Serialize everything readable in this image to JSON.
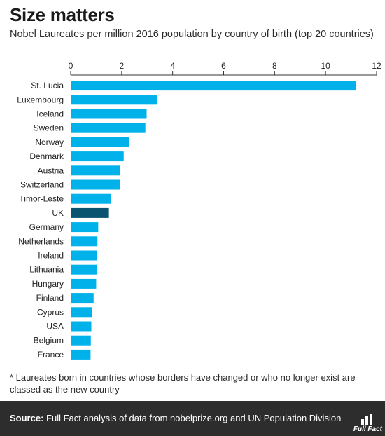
{
  "title": "Size matters",
  "subtitle": "Nobel Laureates per million 2016 population by country of birth (top 20 countries)",
  "footnote": "* Laureates born in countries whose borders have changed or who no longer exist are classed as the new country",
  "source": {
    "label": "Source:",
    "text": "Full Fact analysis of data from nobelprize.org and UN Population Division"
  },
  "logo": {
    "text": "Full Fact",
    "icon": "full-fact-logo-icon"
  },
  "colors": {
    "bar": "#00b1ea",
    "highlight": "#0a5470",
    "axis": "#333333",
    "text": "#222222"
  },
  "chart_data": {
    "type": "bar",
    "orientation": "horizontal",
    "xlim": [
      0,
      12
    ],
    "xticks": [
      0,
      2,
      4,
      6,
      8,
      10,
      12
    ],
    "xaxis_position": "top",
    "grid": false,
    "highlight_category": "UK",
    "categories": [
      "St. Lucia",
      "Luxembourg",
      "Iceland",
      "Sweden",
      "Norway",
      "Denmark",
      "Austria",
      "Switzerland",
      "Timor-Leste",
      "UK",
      "Germany",
      "Netherlands",
      "Ireland",
      "Lithuania",
      "Hungary",
      "Finland",
      "Cyprus",
      "USA",
      "Belgium",
      "France"
    ],
    "values": [
      11.2,
      3.4,
      2.98,
      2.93,
      2.28,
      2.08,
      1.95,
      1.93,
      1.58,
      1.5,
      1.08,
      1.05,
      1.03,
      1.02,
      1.0,
      0.9,
      0.84,
      0.81,
      0.79,
      0.78
    ]
  }
}
